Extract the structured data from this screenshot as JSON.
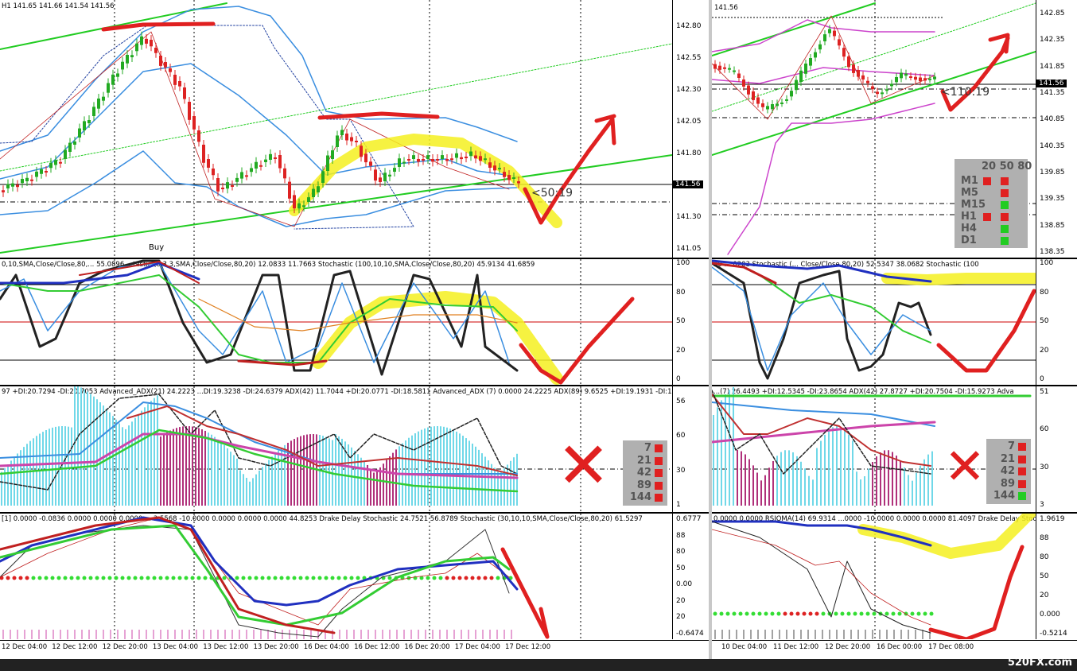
{
  "left": {
    "title": "H1  141.65 141.66 141.54 141.56",
    "price_axis": [
      "142.80",
      "142.55",
      "142.30",
      "142.05",
      "141.80",
      "141.55",
      "141.30",
      "141.05"
    ],
    "price_tag": "141.56",
    "buy_label": "Buy",
    "countdown": "<50:19",
    "stoch_header": "0,10,SMA,Close/Close,80,...  55.0896    ...tastic (8,3,3,SMA,Close/Close,80,20) 12.0833 11.7663   Stochastic (100,10,10,SMA,Close/Close,80,20) 45.9134 41.6859",
    "stoch_axis": [
      "100",
      "80",
      "50",
      "20",
      "0"
    ],
    "adx_header": "97 +DI:20.7294 -DI:20.7053   Advanced_ADX(21) 24.2223 ...DI:19.3238 -DI:24.6379   ADX(42) 11.7044 +DI:20.0771 -DI:18.5811   Advanced_ADX (7) 0.0000 24.2225   ADX(89) 9.6525 +DI:19.1931 -DI:17.1701   ADX",
    "adx_axis": [
      "56",
      "60",
      "30",
      "1"
    ],
    "adx_legend": [
      "7",
      "21",
      "42",
      "89",
      "144"
    ],
    "adx_legend_colors": [
      "#e02020",
      "#e02020",
      "#e02020",
      "#e02020",
      "#e02020"
    ],
    "rsi_header": "[1] 0.0000 -0.0836 0.0000 0.0000 0.0000 ... 3.5568 -10.0000 0.0000 0.0000 0.0000 44.8253  Drake Delay Stochastic 24.7521 56.8789  Stochastic (30,10,10,SMA,Close/Close,80,20) 61.5297",
    "rsi_axis": [
      "0.6777",
      "88",
      "80",
      "50",
      "0.00",
      "20",
      "20",
      "-0.6474"
    ],
    "time_axis": [
      "12 Dec 04:00",
      "12 Dec 12:00",
      "12 Dec 20:00",
      "13 Dec 04:00",
      "13 Dec 12:00",
      "13 Dec 20:00",
      "16 Dec 04:00",
      "16 Dec 12:00",
      "16 Dec 20:00",
      "17 Dec 04:00",
      "17 Dec 12:00"
    ]
  },
  "right": {
    "title": "141.56",
    "price_axis": [
      "142.85",
      "142.35",
      "141.85",
      "141.35",
      "140.85",
      "140.35",
      "139.85",
      "139.35",
      "138.85",
      "138.35"
    ],
    "price_tag": "141.56",
    "countdown": "<110:19",
    "mtf_header": [
      "20",
      "50",
      "80"
    ],
    "mtf_rows": [
      {
        "tf": "M1",
        "c": [
          "#e02020",
          "#e02020"
        ]
      },
      {
        "tf": "M5",
        "c": [
          "",
          "#e02020"
        ]
      },
      {
        "tf": "M15",
        "c": [
          "",
          "#22cc22"
        ]
      },
      {
        "tf": "H1",
        "c": [
          "#e02020",
          "#e02020"
        ]
      },
      {
        "tf": "H4",
        "c": [
          "",
          "#22cc22"
        ]
      },
      {
        "tf": "D1",
        "c": [
          "",
          "#22cc22"
        ]
      }
    ],
    "stoch_header": "20 ... 0203  Stochastic (... Close/Close,80,20) 52.5347 38.0682  Stochastic (100",
    "stoch_axis": [
      "100",
      "80",
      "50",
      "20",
      "0"
    ],
    "adx_header": "...(7) 26.4493 +DI:12.5345 -DI:23.8654  ADX(42) 27.8727 +DI:20.7504 -DI:15.9273  Adva",
    "adx_axis": [
      "51",
      "60",
      "30",
      "3"
    ],
    "adx_legend": [
      "7",
      "21",
      "42",
      "89",
      "144"
    ],
    "adx_legend_colors": [
      "#e02020",
      "#e02020",
      "#e02020",
      "#e02020",
      "#22cc22"
    ],
    "rsi_header": "0.0000 0.0000  RSIOMA(14) 69.9314 ...0000 -10.0000 0.0000 0.0000 81.4097  Drake Delay Stoc",
    "rsi_axis": [
      "1.9619",
      "88",
      "80",
      "50",
      "20",
      "0.000",
      "-0.5214"
    ],
    "time_axis": [
      "10 Dec 04:00",
      "11 Dec 12:00",
      "12 Dec 20:00",
      "16 Dec 00:00",
      "17 Dec 08:00"
    ]
  },
  "watermark": "520FX.com",
  "colors": {
    "bull": "#22aa22",
    "bear": "#dd2222",
    "band": "#3a8ee0",
    "channel": "#22cc22",
    "annotation": "#e02020",
    "highlight": "#f5f020",
    "cyan_bar": "#70d8e8",
    "magenta_bar": "#b0307a"
  }
}
